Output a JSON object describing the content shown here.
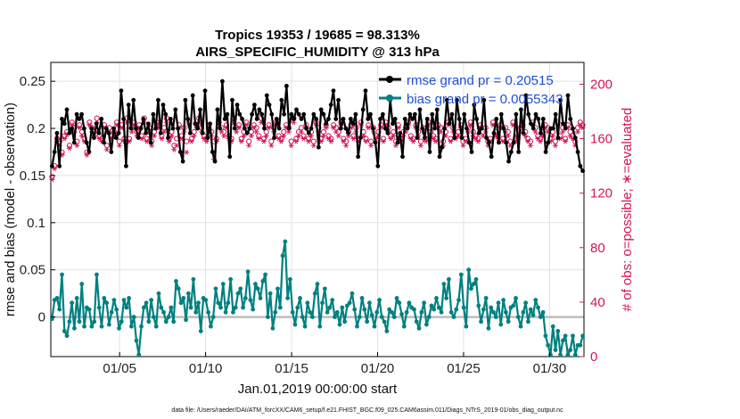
{
  "chart_data": {
    "type": "line",
    "title": "Tropics 19353 / 19685 = 98.313%",
    "subtitle": "AIRS_SPECIFIC_HUMIDITY @ 313 hPa",
    "xlabel": "Jan.01,2019 00:00:00 start",
    "ylabel": "rmse and bias (model - observation)",
    "ylabel_right": "# of obs: o=possible; ∗=evaluated",
    "footer": "data file: /Users/raeder/DAI/ATM_forcXX/CAM6_setup/f.e21.FHIST_BGC.f09_025.CAM6assim.011/Diags_NTrS_2019-01/obs_diag_output.nc",
    "xlim": [
      1,
      32
    ],
    "ylim": [
      -0.042,
      0.27
    ],
    "ylim_right": [
      0,
      216
    ],
    "xticks": [
      5,
      10,
      15,
      20,
      25,
      30
    ],
    "xtick_labels": [
      "01/05",
      "01/10",
      "01/15",
      "01/20",
      "01/25",
      "01/30"
    ],
    "yticks": [
      0,
      0.05,
      0.1,
      0.15,
      0.2,
      0.25
    ],
    "ytick_labels": [
      "0",
      "0.05",
      "0.1",
      "0.15",
      "0.2",
      "0.25"
    ],
    "yticks_right": [
      0,
      40,
      80,
      120,
      160,
      200
    ],
    "ytick_labels_right": [
      "0",
      "40",
      "80",
      "120",
      "160",
      "200"
    ],
    "legend_position": "top-right",
    "series": [
      {
        "name": "rmse grand pr = 0.20515",
        "color": "#000000",
        "marker": "asterisk",
        "values": [
          0.16,
          0.175,
          0.195,
          0.16,
          0.21,
          0.205,
          0.22,
          0.195,
          0.2,
          0.185,
          0.215,
          0.21,
          0.215,
          0.2,
          0.185,
          0.175,
          0.2,
          0.19,
          0.205,
          0.195,
          0.21,
          0.185,
          0.2,
          0.195,
          0.175,
          0.2,
          0.19,
          0.195,
          0.24,
          0.21,
          0.16,
          0.225,
          0.2,
          0.23,
          0.2,
          0.19,
          0.2,
          0.21,
          0.195,
          0.205,
          0.185,
          0.215,
          0.2,
          0.23,
          0.195,
          0.225,
          0.215,
          0.19,
          0.21,
          0.2,
          0.22,
          0.2,
          0.175,
          0.165,
          0.23,
          0.21,
          0.195,
          0.235,
          0.205,
          0.2,
          0.22,
          0.195,
          0.24,
          0.19,
          0.205,
          0.175,
          0.165,
          0.22,
          0.2,
          0.25,
          0.21,
          0.215,
          0.17,
          0.23,
          0.2,
          0.225,
          0.215,
          0.21,
          0.2,
          0.195,
          0.2,
          0.215,
          0.225,
          0.21,
          0.22,
          0.215,
          0.2,
          0.235,
          0.225,
          0.215,
          0.19,
          0.21,
          0.2,
          0.23,
          0.215,
          0.245,
          0.2,
          0.215,
          0.21,
          0.22,
          0.215,
          0.21,
          0.215,
          0.2,
          0.195,
          0.2,
          0.215,
          0.21,
          0.18,
          0.22,
          0.215,
          0.205,
          0.21,
          0.225,
          0.24,
          0.21,
          0.23,
          0.2,
          0.21,
          0.2,
          0.195,
          0.21,
          0.205,
          0.215,
          0.17,
          0.19,
          0.22,
          0.24,
          0.21,
          0.215,
          0.2,
          0.185,
          0.16,
          0.21,
          0.215,
          0.2,
          0.195,
          0.23,
          0.205,
          0.21,
          0.185,
          0.195,
          0.17,
          0.21,
          0.2,
          0.215,
          0.21,
          0.215,
          0.19,
          0.22,
          0.2,
          0.19,
          0.21,
          0.175,
          0.215,
          0.2,
          0.22,
          0.17,
          0.18,
          0.2,
          0.23,
          0.205,
          0.215,
          0.19,
          0.23,
          0.21,
          0.19,
          0.215,
          0.2,
          0.185,
          0.175,
          0.225,
          0.21,
          0.195,
          0.2,
          0.23,
          0.19,
          0.185,
          0.17,
          0.195,
          0.21,
          0.185,
          0.215,
          0.2,
          0.185,
          0.165,
          0.175,
          0.185,
          0.215,
          0.175,
          0.22,
          0.195,
          0.235,
          0.215,
          0.205,
          0.2,
          0.215,
          0.21,
          0.195,
          0.21,
          0.175,
          0.185,
          0.2,
          0.2,
          0.215,
          0.19,
          0.23,
          0.205,
          0.2,
          0.235,
          0.21,
          0.2,
          0.19,
          0.175,
          0.16,
          0.155
        ]
      },
      {
        "name": "bias grand pr = 0.0055343",
        "color": "#008080",
        "marker": "circle",
        "values": [
          -0.002,
          0.018,
          0.02,
          0.008,
          0.045,
          -0.015,
          -0.02,
          -0.005,
          0.015,
          -0.012,
          0.02,
          -0.005,
          0.035,
          -0.01,
          0.01,
          0.008,
          -0.01,
          -0.005,
          0.045,
          0.01,
          -0.01,
          0.02,
          0.015,
          -0.008,
          0.005,
          0.018,
          0.008,
          -0.012,
          -0.005,
          0.018,
          0.01,
          0.02,
          -0.01,
          0.0,
          -0.025,
          -0.04,
          -0.01,
          0.01,
          0.015,
          -0.005,
          0.018,
          0.0,
          -0.01,
          0.025,
          0.01,
          0.005,
          -0.005,
          0.0,
          0.01,
          -0.005,
          0.038,
          0.03,
          0.015,
          0.02,
          -0.003,
          0.025,
          0.01,
          0.04,
          0.005,
          0.015,
          -0.015,
          0.02,
          0.018,
          0.005,
          -0.01,
          0.0,
          0.03,
          0.015,
          0.01,
          0.035,
          0.005,
          0.015,
          0.04,
          0.005,
          0.01,
          0.025,
          0.03,
          0.01,
          0.02,
          0.048,
          0.018,
          0.008,
          0.035,
          0.03,
          0.02,
          0.038,
          0.045,
          0.0,
          0.025,
          -0.012,
          0.005,
          0.03,
          0.01,
          0.065,
          0.08,
          0.02,
          0.04,
          0.005,
          -0.008,
          0.01,
          0.02,
          0.0,
          -0.01,
          0.015,
          0.005,
          0.0,
          0.025,
          0.035,
          -0.01,
          0.015,
          0.03,
          0.005,
          0.01,
          0.018,
          0.0,
          0.005,
          -0.008,
          0.01,
          -0.005,
          0.012,
          0.015,
          0.025,
          0.008,
          -0.01,
          0.0,
          0.02,
          0.008,
          -0.005,
          0.015,
          0.002,
          -0.01,
          0.005,
          0.018,
          0.0,
          -0.005,
          -0.015,
          0.008,
          0.005,
          0.0,
          0.02,
          0.015,
          0.003,
          -0.01,
          0.005,
          0.015,
          0.01,
          0.008,
          -0.005,
          -0.012,
          0.005,
          0.015,
          -0.008,
          0.0,
          0.012,
          0.008,
          0.02,
          0.01,
          0.005,
          0.035,
          0.02,
          0.04,
          0.005,
          0.0,
          0.008,
          0.018,
          0.045,
          0.01,
          -0.01,
          0.05,
          0.03,
          0.035,
          0.04,
          0.012,
          -0.005,
          0.008,
          0.02,
          -0.012,
          0.01,
          0.005,
          0.0,
          0.015,
          -0.008,
          0.018,
          0.005,
          -0.005,
          0.01,
          0.012,
          0.02,
          0.0,
          -0.01,
          0.005,
          0.015,
          -0.005,
          0.008,
          0.002,
          0.018,
          0.01,
          0.0,
          0.005,
          -0.02,
          -0.03,
          -0.04,
          -0.01,
          -0.035,
          -0.015,
          -0.04,
          -0.025,
          -0.02,
          -0.04,
          -0.035,
          -0.02,
          -0.04,
          -0.03,
          -0.03,
          -0.02
        ]
      },
      {
        "name": "obs possible",
        "axis": "right",
        "color": "#d4145a",
        "marker": "o",
        "values": [
          132,
          140,
          160,
          158,
          150,
          162,
          165,
          155,
          172,
          168,
          158,
          170,
          165,
          160,
          150,
          172,
          168,
          165,
          175,
          162,
          160,
          170,
          155,
          168,
          162,
          165,
          172,
          158,
          170,
          160,
          175,
          160,
          168,
          172,
          165,
          170,
          162,
          175,
          160,
          168,
          158,
          165,
          172,
          170,
          162,
          168,
          175,
          160,
          165,
          155,
          160,
          170,
          162,
          168,
          158,
          172,
          160,
          165,
          170,
          175,
          168,
          162,
          160,
          170,
          165,
          158,
          160,
          172,
          168,
          165,
          170,
          162,
          160,
          175,
          168,
          170,
          160,
          165,
          172,
          158,
          165,
          170,
          168,
          162,
          175,
          160,
          165,
          170,
          158,
          168,
          172,
          162,
          160,
          165,
          170,
          168,
          158,
          175,
          160,
          165,
          168,
          162,
          170,
          160,
          165,
          158,
          172,
          168,
          160,
          165,
          170,
          162,
          160,
          170,
          168,
          165,
          172,
          160,
          158,
          165,
          170,
          162,
          168,
          160,
          172,
          165,
          160,
          170,
          158,
          168,
          162,
          165,
          170,
          160,
          172,
          168,
          162,
          165,
          158,
          170,
          160,
          165,
          168,
          172,
          162,
          160,
          170,
          165,
          158,
          168,
          160,
          172,
          165,
          162,
          160,
          170,
          168,
          158,
          165,
          172,
          160,
          168,
          162,
          165,
          170,
          158,
          160,
          168,
          172,
          165,
          162,
          160,
          170,
          165,
          168,
          158,
          160,
          172,
          165,
          162,
          170,
          160,
          168,
          165,
          158,
          172,
          160,
          162,
          168,
          170,
          165,
          160,
          158,
          172,
          168,
          162,
          160,
          165,
          170,
          168,
          160,
          165,
          158,
          172,
          162,
          168,
          160,
          170,
          165,
          162,
          158,
          168,
          172,
          170
        ]
      },
      {
        "name": "obs evaluated",
        "axis": "right",
        "color": "#d4145a",
        "marker": "asterisk",
        "values": [
          130,
          138,
          158,
          155,
          148,
          160,
          163,
          153,
          170,
          165,
          155,
          168,
          162,
          158,
          148,
          170,
          165,
          162,
          172,
          160,
          158,
          168,
          152,
          165,
          160,
          162,
          170,
          155,
          168,
          158,
          172,
          158,
          165,
          170,
          162,
          168,
          160,
          172,
          158,
          165,
          155,
          162,
          170,
          168,
          160,
          165,
          172,
          158,
          162,
          152,
          155,
          168,
          160,
          165,
          150,
          170,
          158,
          162,
          168,
          172,
          165,
          160,
          158,
          168,
          162,
          145,
          158,
          170,
          165,
          162,
          168,
          160,
          158,
          172,
          165,
          168,
          158,
          162,
          170,
          155,
          162,
          168,
          165,
          160,
          172,
          158,
          162,
          168,
          155,
          165,
          170,
          160,
          158,
          162,
          168,
          165,
          155,
          172,
          158,
          162,
          165,
          160,
          168,
          158,
          162,
          155,
          170,
          165,
          158,
          162,
          168,
          160,
          158,
          168,
          165,
          162,
          170,
          158,
          155,
          162,
          168,
          160,
          165,
          158,
          170,
          162,
          158,
          168,
          155,
          165,
          160,
          162,
          168,
          158,
          170,
          165,
          160,
          162,
          155,
          168,
          158,
          162,
          165,
          170,
          160,
          158,
          168,
          162,
          155,
          165,
          158,
          170,
          162,
          160,
          158,
          168,
          165,
          155,
          162,
          170,
          158,
          165,
          160,
          162,
          168,
          155,
          158,
          165,
          170,
          162,
          160,
          158,
          168,
          162,
          165,
          155,
          158,
          170,
          162,
          160,
          168,
          158,
          165,
          162,
          155,
          170,
          158,
          160,
          165,
          168,
          162,
          158,
          155,
          170,
          165,
          160,
          158,
          162,
          168,
          165,
          158,
          162,
          155,
          170,
          160,
          165,
          158,
          168,
          162,
          160,
          155,
          165,
          170,
          168
        ]
      }
    ]
  }
}
